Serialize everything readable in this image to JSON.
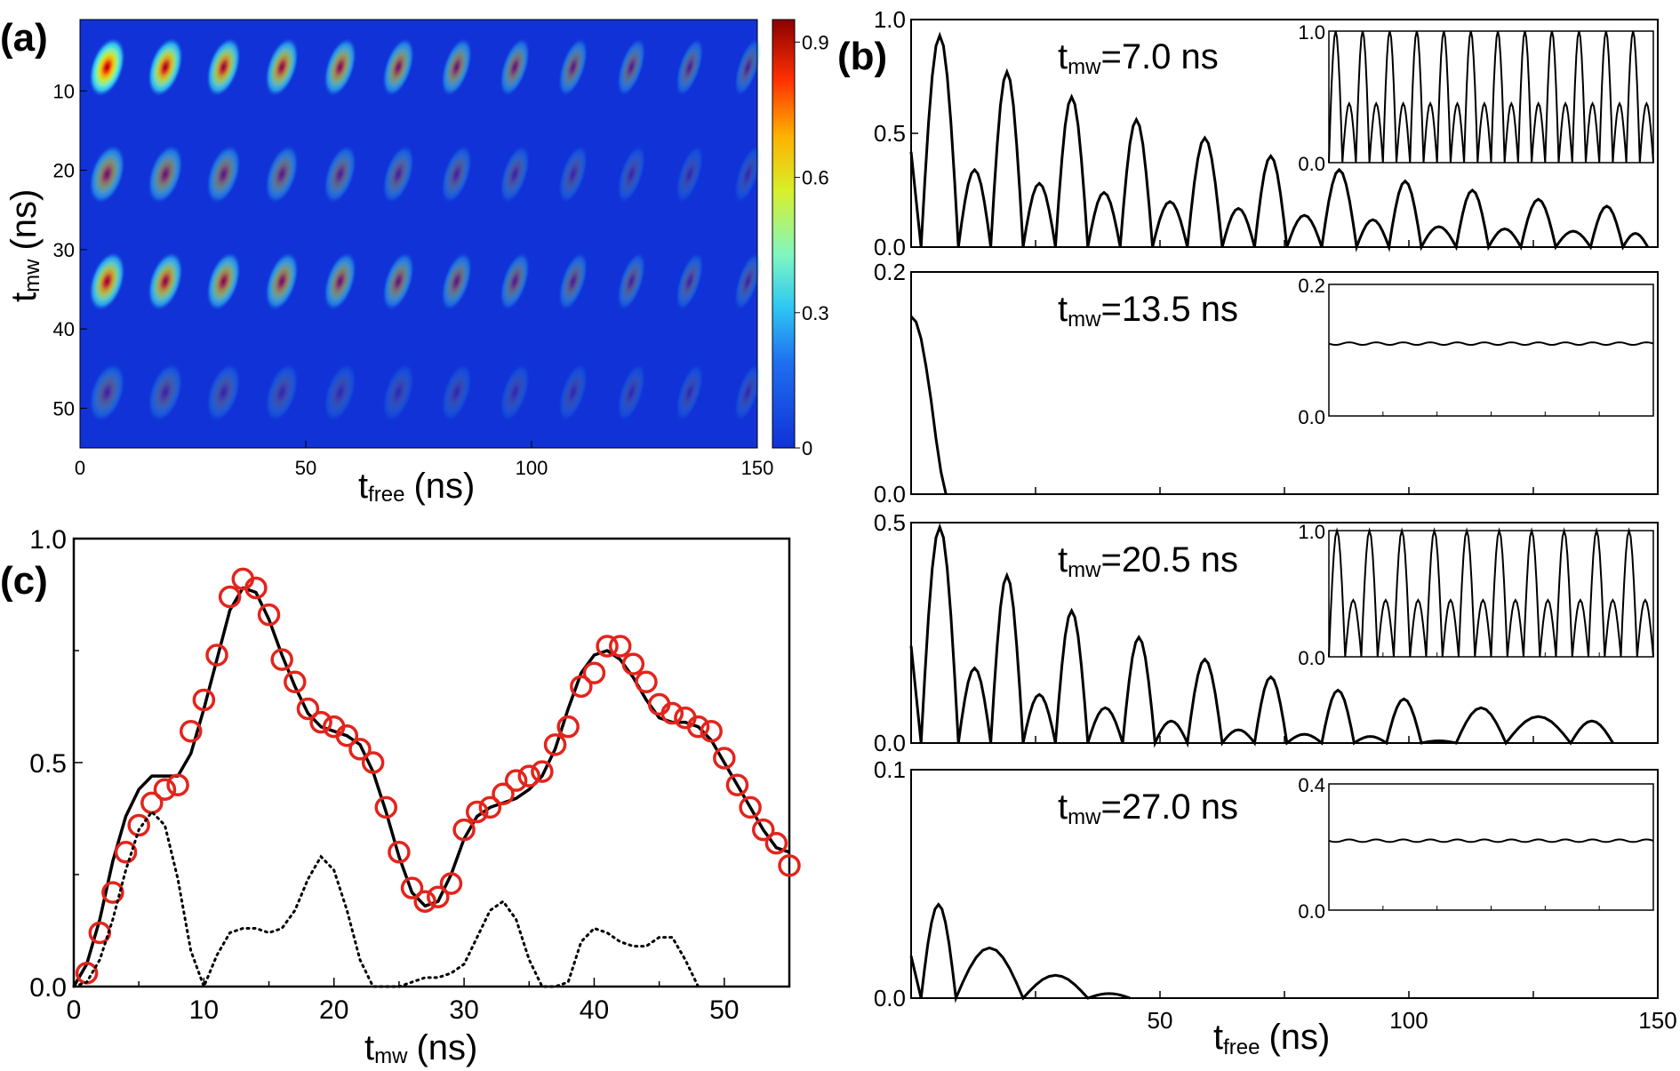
{
  "panel_labels": {
    "a": "(a)",
    "b": "(b)",
    "c": "(c)"
  },
  "colors": {
    "line": "#000000",
    "markers": "#e3241b",
    "colormap_low": "#1032d6",
    "colormap_high": "#8b0000"
  },
  "chart_data": [
    {
      "id": "a",
      "type": "heatmap",
      "xlabel_main": "t",
      "xlabel_sub": "free",
      "xlabel_unit": "(ns)",
      "ylabel_main": "t",
      "ylabel_sub": "mw",
      "ylabel_unit": "(ns)",
      "xlim": [
        0,
        150
      ],
      "ylim": [
        55,
        1
      ],
      "xticks": [
        {
          "v": 0,
          "t": "0"
        },
        {
          "v": 50,
          "t": "50"
        },
        {
          "v": 100,
          "t": "100"
        },
        {
          "v": 150,
          "t": "150"
        }
      ],
      "yticks": [
        {
          "v": 10,
          "t": "10"
        },
        {
          "v": 20,
          "t": "20"
        },
        {
          "v": 30,
          "t": "30"
        },
        {
          "v": 40,
          "t": "40"
        },
        {
          "v": 50,
          "t": "50"
        }
      ],
      "colorbar": {
        "range": [
          0,
          0.95
        ],
        "ticks": [
          {
            "v": 0,
            "t": "0"
          },
          {
            "v": 0.3,
            "t": "0.3"
          },
          {
            "v": 0.6,
            "t": "0.6"
          },
          {
            "v": 0.9,
            "t": "0.9"
          }
        ]
      },
      "peak_rows": [
        {
          "tmw": 7.0,
          "amp": 0.93
        },
        {
          "tmw": 20.5,
          "amp": 0.5
        },
        {
          "tmw": 34.0,
          "amp": 0.75
        },
        {
          "tmw": 48.0,
          "amp": 0.25
        }
      ],
      "peak_period_ns": 12.9,
      "peak_decay_ns": 110,
      "grid": false
    },
    {
      "id": "b1",
      "type": "line",
      "annotation_main": "t",
      "annotation_sub": "mw",
      "annotation_value": "=7.0 ns",
      "xlim": [
        0,
        150
      ],
      "ylim": [
        0,
        1.0
      ],
      "yticks": [
        {
          "v": 0,
          "t": "0.0"
        },
        {
          "v": 0.5,
          "t": "0.5"
        },
        {
          "v": 1.0,
          "t": "1.0"
        }
      ],
      "xticks": [],
      "xminor": [
        0,
        25,
        50,
        75,
        100,
        125,
        150
      ],
      "peaks": [
        {
          "x": 6,
          "y": 0.93
        },
        {
          "x": 13,
          "y": 0.34
        },
        {
          "x": 19,
          "y": 0.77
        },
        {
          "x": 26,
          "y": 0.28
        },
        {
          "x": 32,
          "y": 0.66
        },
        {
          "x": 39,
          "y": 0.24
        },
        {
          "x": 45,
          "y": 0.56
        },
        {
          "x": 52,
          "y": 0.2
        },
        {
          "x": 59,
          "y": 0.48
        },
        {
          "x": 66,
          "y": 0.17
        },
        {
          "x": 72,
          "y": 0.4
        },
        {
          "x": 79,
          "y": 0.14
        },
        {
          "x": 86,
          "y": 0.34
        },
        {
          "x": 93,
          "y": 0.12
        },
        {
          "x": 99,
          "y": 0.29
        },
        {
          "x": 106,
          "y": 0.09
        },
        {
          "x": 113,
          "y": 0.25
        },
        {
          "x": 119,
          "y": 0.08
        },
        {
          "x": 126,
          "y": 0.21
        },
        {
          "x": 133,
          "y": 0.07
        },
        {
          "x": 140,
          "y": 0.18
        },
        {
          "x": 146,
          "y": 0.06
        }
      ],
      "inset": {
        "type": "line",
        "ylim": [
          0,
          1.0
        ],
        "yticks": [
          {
            "v": 0,
            "t": "0.0"
          },
          {
            "v": 1.0,
            "t": "1.0"
          }
        ],
        "pattern": "alternating-peaks",
        "high": 1.0,
        "low": 0.45,
        "count": 24
      }
    },
    {
      "id": "b2",
      "type": "line",
      "annotation_main": "t",
      "annotation_sub": "mw",
      "annotation_value": "=13.5 ns",
      "xlim": [
        0,
        150
      ],
      "ylim": [
        0,
        0.2
      ],
      "yticks": [
        {
          "v": 0,
          "t": "0.0"
        },
        {
          "v": 0.2,
          "t": "0.2"
        }
      ],
      "xticks": [],
      "xminor": [
        0,
        25,
        50,
        75,
        100,
        125,
        150
      ],
      "curve": [
        [
          0,
          0.16
        ],
        [
          1,
          0.155
        ],
        [
          2,
          0.14
        ],
        [
          3,
          0.115
        ],
        [
          4,
          0.085
        ],
        [
          5,
          0.05
        ],
        [
          6,
          0.02
        ],
        [
          7,
          0.0
        ]
      ],
      "inset": {
        "type": "line",
        "ylim": [
          0,
          0.2
        ],
        "yticks": [
          {
            "v": 0,
            "t": "0.0"
          },
          {
            "v": 0.2,
            "t": "0.2"
          }
        ],
        "pattern": "flat-ripple",
        "level": 0.11
      }
    },
    {
      "id": "b3",
      "type": "line",
      "annotation_main": "t",
      "annotation_sub": "mw",
      "annotation_value": "=20.5 ns",
      "xlim": [
        0,
        150
      ],
      "ylim": [
        0,
        0.5
      ],
      "yticks": [
        {
          "v": 0,
          "t": "0.0"
        },
        {
          "v": 0.5,
          "t": "0.5"
        }
      ],
      "xticks": [],
      "xminor": [
        0,
        25,
        50,
        75,
        100,
        125,
        150
      ],
      "peaks": [
        {
          "x": 6,
          "y": 0.49
        },
        {
          "x": 13,
          "y": 0.17
        },
        {
          "x": 19,
          "y": 0.38
        },
        {
          "x": 26,
          "y": 0.11
        },
        {
          "x": 32,
          "y": 0.3
        },
        {
          "x": 39,
          "y": 0.08
        },
        {
          "x": 46,
          "y": 0.24
        },
        {
          "x": 52,
          "y": 0.05
        },
        {
          "x": 59,
          "y": 0.19
        },
        {
          "x": 66,
          "y": 0.03
        },
        {
          "x": 72,
          "y": 0.15
        },
        {
          "x": 79,
          "y": 0.02
        },
        {
          "x": 86,
          "y": 0.12
        },
        {
          "x": 92,
          "y": 0.015
        },
        {
          "x": 99,
          "y": 0.1
        },
        {
          "x": 106,
          "y": 0.005
        },
        {
          "x": 113,
          "y": 0.08
        },
        {
          "x": 126,
          "y": 0.06
        },
        {
          "x": 139,
          "y": 0.05
        }
      ],
      "inset": {
        "type": "line",
        "ylim": [
          0,
          1.0
        ],
        "yticks": [
          {
            "v": 0,
            "t": "0.0"
          },
          {
            "v": 1.0,
            "t": "1.0"
          }
        ],
        "pattern": "alternating-peaks",
        "high": 1.0,
        "low": 0.45,
        "count": 20
      }
    },
    {
      "id": "b4",
      "type": "line",
      "annotation_main": "t",
      "annotation_sub": "mw",
      "annotation_value": "=27.0 ns",
      "xlim": [
        0,
        150
      ],
      "ylim": [
        0,
        0.1
      ],
      "yticks": [
        {
          "v": 0,
          "t": "0.0"
        },
        {
          "v": 0.1,
          "t": "0.1"
        }
      ],
      "xticks": [
        {
          "v": 50,
          "t": "50"
        },
        {
          "v": 100,
          "t": "100"
        },
        {
          "v": 150,
          "t": "150"
        }
      ],
      "xminor": [
        0,
        25,
        50,
        75,
        100,
        125,
        150
      ],
      "xlabel_main": "t",
      "xlabel_sub": "free",
      "xlabel_unit": "(ns)",
      "peaks": [
        {
          "x": 2,
          "y": 0.041
        },
        {
          "x": 16,
          "y": 0.022
        },
        {
          "x": 29,
          "y": 0.01
        },
        {
          "x": 42,
          "y": 0.002
        }
      ],
      "inset": {
        "type": "line",
        "ylim": [
          0,
          0.4
        ],
        "yticks": [
          {
            "v": 0,
            "t": "0.0"
          },
          {
            "v": 0.4,
            "t": "0.4"
          }
        ],
        "pattern": "flat-ripple",
        "level": 0.22
      }
    },
    {
      "id": "c",
      "type": "line",
      "xlabel_main": "t",
      "xlabel_sub": "mw",
      "xlabel_unit": "(ns)",
      "xlim": [
        0,
        55
      ],
      "ylim": [
        0,
        1.0
      ],
      "xticks": [
        {
          "v": 0,
          "t": "0"
        },
        {
          "v": 10,
          "t": "10"
        },
        {
          "v": 20,
          "t": "20"
        },
        {
          "v": 30,
          "t": "30"
        },
        {
          "v": 40,
          "t": "40"
        },
        {
          "v": 50,
          "t": "50"
        }
      ],
      "yticks": [
        {
          "v": 0,
          "t": "0.0"
        },
        {
          "v": 0.5,
          "t": "0.5"
        },
        {
          "v": 1.0,
          "t": "1.0"
        }
      ],
      "series": [
        {
          "style": "solid",
          "x": [
            0,
            1,
            2,
            3,
            4,
            5,
            6,
            7,
            8,
            9,
            10,
            11,
            12,
            13,
            14,
            15,
            16,
            17,
            18,
            19,
            20,
            21,
            22,
            23,
            24,
            25,
            26,
            27,
            28,
            29,
            30,
            31,
            32,
            33,
            34,
            35,
            36,
            37,
            38,
            39,
            40,
            41,
            42,
            43,
            44,
            45,
            46,
            47,
            48,
            49,
            50,
            51,
            52,
            53,
            54,
            55
          ],
          "y": [
            0.0,
            0.05,
            0.15,
            0.28,
            0.38,
            0.44,
            0.47,
            0.47,
            0.47,
            0.52,
            0.62,
            0.73,
            0.84,
            0.89,
            0.88,
            0.82,
            0.74,
            0.67,
            0.61,
            0.58,
            0.57,
            0.56,
            0.54,
            0.48,
            0.39,
            0.29,
            0.21,
            0.18,
            0.19,
            0.25,
            0.33,
            0.38,
            0.4,
            0.41,
            0.42,
            0.44,
            0.47,
            0.53,
            0.62,
            0.7,
            0.74,
            0.75,
            0.73,
            0.69,
            0.64,
            0.6,
            0.59,
            0.59,
            0.58,
            0.55,
            0.5,
            0.45,
            0.4,
            0.35,
            0.31,
            0.3
          ]
        },
        {
          "style": "circles",
          "x": [
            1,
            2,
            3,
            4,
            5,
            6,
            7,
            8,
            9,
            10,
            11,
            12,
            13,
            14,
            15,
            16,
            17,
            18,
            19,
            20,
            21,
            22,
            23,
            24,
            25,
            26,
            27,
            28,
            29,
            30,
            31,
            32,
            33,
            34,
            35,
            36,
            37,
            38,
            39,
            40,
            41,
            42,
            43,
            44,
            45,
            46,
            47,
            48,
            49,
            50,
            51,
            52,
            53,
            54,
            55
          ],
          "y": [
            0.03,
            0.12,
            0.21,
            0.3,
            0.36,
            0.41,
            0.44,
            0.45,
            0.57,
            0.64,
            0.74,
            0.87,
            0.91,
            0.89,
            0.83,
            0.73,
            0.68,
            0.62,
            0.59,
            0.58,
            0.56,
            0.53,
            0.5,
            0.4,
            0.3,
            0.22,
            0.19,
            0.2,
            0.23,
            0.35,
            0.39,
            0.4,
            0.43,
            0.46,
            0.47,
            0.48,
            0.54,
            0.58,
            0.67,
            0.7,
            0.76,
            0.76,
            0.72,
            0.68,
            0.63,
            0.61,
            0.6,
            0.58,
            0.57,
            0.51,
            0.45,
            0.4,
            0.35,
            0.32,
            0.27
          ]
        },
        {
          "style": "dotted",
          "x": [
            0,
            1,
            2,
            3,
            4,
            5,
            6,
            7,
            8,
            9,
            10,
            11,
            12,
            13,
            14,
            15,
            16,
            17,
            18,
            19,
            20,
            21,
            22,
            23,
            24,
            25,
            26,
            27,
            28,
            29,
            30,
            31,
            32,
            33,
            34,
            35,
            36,
            37,
            38,
            39,
            40,
            41,
            42,
            43,
            44,
            45,
            46,
            47,
            48
          ],
          "y": [
            0.0,
            0.01,
            0.06,
            0.15,
            0.26,
            0.35,
            0.39,
            0.36,
            0.24,
            0.08,
            0.0,
            0.07,
            0.12,
            0.13,
            0.13,
            0.12,
            0.13,
            0.17,
            0.24,
            0.29,
            0.26,
            0.17,
            0.06,
            0.0,
            0.0,
            0.0,
            0.01,
            0.02,
            0.02,
            0.03,
            0.05,
            0.11,
            0.17,
            0.19,
            0.15,
            0.06,
            0.0,
            0.0,
            0.01,
            0.1,
            0.13,
            0.12,
            0.1,
            0.09,
            0.09,
            0.11,
            0.11,
            0.06,
            0.0
          ]
        }
      ],
      "grid": false
    }
  ]
}
